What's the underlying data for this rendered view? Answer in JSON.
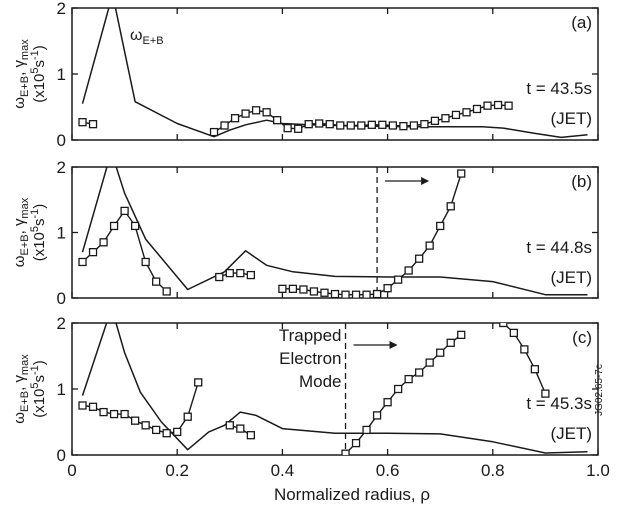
{
  "chart_data": [
    {
      "panel": "(a)",
      "type": "line",
      "xlim": [
        0,
        1.0
      ],
      "ylim": [
        0,
        2
      ],
      "yticks": [
        "0",
        "1",
        "2"
      ],
      "time_label": "t = 43.5s",
      "device_label": "(JET)",
      "curve_label": "ωE+B",
      "series": [
        {
          "style": "solid-line",
          "x": [
            0.02,
            0.07,
            0.08,
            0.12,
            0.2,
            0.27,
            0.3,
            0.33,
            0.37,
            0.4,
            0.45,
            0.55,
            0.65,
            0.72,
            0.78,
            0.82,
            0.88,
            0.93,
            0.98
          ],
          "y": [
            0.55,
            2.0,
            2.1,
            0.58,
            0.25,
            0.05,
            0.15,
            0.23,
            0.3,
            0.25,
            0.23,
            0.21,
            0.2,
            0.2,
            0.2,
            0.18,
            0.1,
            0.04,
            0.08
          ]
        },
        {
          "style": "square-markers",
          "x": [
            0.02,
            0.04
          ],
          "y": [
            0.27,
            0.24
          ]
        },
        {
          "style": "square-markers",
          "x": [
            0.27,
            0.29,
            0.31,
            0.33,
            0.35,
            0.37,
            0.39,
            0.41,
            0.43,
            0.45,
            0.47,
            0.49,
            0.51,
            0.53,
            0.55,
            0.57,
            0.59,
            0.61,
            0.63,
            0.65,
            0.67,
            0.69,
            0.71,
            0.73,
            0.75,
            0.77,
            0.79,
            0.81,
            0.83
          ],
          "y": [
            0.12,
            0.22,
            0.33,
            0.4,
            0.45,
            0.42,
            0.3,
            0.18,
            0.17,
            0.24,
            0.25,
            0.24,
            0.22,
            0.22,
            0.22,
            0.23,
            0.23,
            0.22,
            0.21,
            0.22,
            0.24,
            0.29,
            0.33,
            0.38,
            0.42,
            0.47,
            0.52,
            0.53,
            0.52
          ]
        }
      ]
    },
    {
      "panel": "(b)",
      "type": "line",
      "xlim": [
        0,
        1.0
      ],
      "ylim": [
        0,
        2
      ],
      "yticks": [
        "0",
        "1",
        "2"
      ],
      "time_label": "t = 44.8s",
      "device_label": "(JET)",
      "dashed_line_x": 0.58,
      "series": [
        {
          "style": "solid-line",
          "x": [
            0.02,
            0.07,
            0.08,
            0.1,
            0.14,
            0.22,
            0.29,
            0.33,
            0.37,
            0.42,
            0.5,
            0.6,
            0.7,
            0.8,
            0.9,
            0.98
          ],
          "y": [
            0.7,
            2.1,
            2.1,
            1.6,
            0.9,
            0.13,
            0.4,
            0.72,
            0.5,
            0.4,
            0.33,
            0.32,
            0.32,
            0.25,
            0.05,
            0.05
          ]
        },
        {
          "style": "square-markers",
          "x": [
            0.02,
            0.04,
            0.06,
            0.08,
            0.1,
            0.12,
            0.14,
            0.16,
            0.18
          ],
          "y": [
            0.55,
            0.7,
            0.85,
            1.1,
            1.33,
            1.1,
            0.55,
            0.25,
            0.1
          ]
        },
        {
          "style": "square-markers",
          "x": [
            0.28,
            0.3,
            0.32,
            0.34
          ],
          "y": [
            0.32,
            0.38,
            0.38,
            0.35
          ]
        },
        {
          "style": "square-markers",
          "x": [
            0.4,
            0.42,
            0.44,
            0.46,
            0.48,
            0.5,
            0.52,
            0.54,
            0.56,
            0.58
          ],
          "y": [
            0.14,
            0.14,
            0.13,
            0.1,
            0.08,
            0.06,
            0.05,
            0.05,
            0.05,
            0.06
          ]
        },
        {
          "style": "square-markers",
          "x": [
            0.58,
            0.6,
            0.62,
            0.64,
            0.66,
            0.68,
            0.7,
            0.72,
            0.74
          ],
          "y": [
            0.06,
            0.15,
            0.28,
            0.42,
            0.6,
            0.8,
            1.1,
            1.4,
            1.9
          ]
        }
      ]
    },
    {
      "panel": "(c)",
      "type": "line",
      "xlim": [
        0,
        1.0
      ],
      "ylim": [
        0,
        2
      ],
      "yticks": [
        "0",
        "1",
        "2"
      ],
      "xticks": [
        "0",
        "0.2",
        "0.4",
        "0.6",
        "0.8",
        "1.0"
      ],
      "xlabel": "Normalized radius, ρ",
      "time_label": "t = 45.3s",
      "device_label": "(JET)",
      "dashed_line_x": 0.52,
      "annotation": [
        "Trapped",
        "Electron",
        "Mode"
      ],
      "series": [
        {
          "style": "solid-line",
          "x": [
            0.02,
            0.07,
            0.08,
            0.1,
            0.13,
            0.17,
            0.22,
            0.26,
            0.29,
            0.32,
            0.35,
            0.4,
            0.5,
            0.6,
            0.7,
            0.8,
            0.9,
            0.98
          ],
          "y": [
            0.9,
            2.1,
            2.1,
            1.55,
            0.95,
            0.5,
            0.08,
            0.35,
            0.45,
            0.65,
            0.6,
            0.4,
            0.33,
            0.33,
            0.32,
            0.2,
            0.03,
            0.05
          ]
        },
        {
          "style": "square-markers",
          "x": [
            0.02,
            0.04,
            0.06,
            0.08,
            0.1,
            0.12,
            0.14,
            0.16,
            0.18,
            0.2,
            0.22,
            0.24
          ],
          "y": [
            0.75,
            0.73,
            0.65,
            0.62,
            0.62,
            0.52,
            0.45,
            0.38,
            0.33,
            0.35,
            0.58,
            1.1
          ]
        },
        {
          "style": "square-markers",
          "x": [
            0.3,
            0.32,
            0.34
          ],
          "y": [
            0.45,
            0.4,
            0.3
          ]
        },
        {
          "style": "square-markers",
          "x": [
            0.52,
            0.54,
            0.56,
            0.58,
            0.6,
            0.62,
            0.64,
            0.66,
            0.68,
            0.7,
            0.72,
            0.74
          ],
          "y": [
            0.02,
            0.18,
            0.38,
            0.6,
            0.8,
            1.0,
            1.15,
            1.25,
            1.4,
            1.55,
            1.7,
            1.82
          ]
        },
        {
          "style": "square-markers",
          "x": [
            0.82,
            0.84,
            0.86,
            0.88,
            0.9
          ],
          "y": [
            2.0,
            1.85,
            1.6,
            1.3,
            0.93
          ]
        }
      ]
    }
  ],
  "shared": {
    "ylabel_main": "ω",
    "ylabel_sub1": "E+B",
    "ylabel_mid": ", γ",
    "ylabel_sub2": "max",
    "ylabel_unit": "(x10",
    "ylabel_exp1": "5",
    "ylabel_s": "s",
    "ylabel_exp2": "-1",
    "ylabel_close": ")",
    "figure_code": "JG02.65-7c"
  }
}
